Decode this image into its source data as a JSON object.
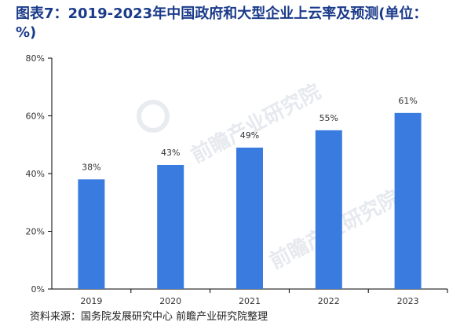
{
  "title": "图表7：2019-2023年中国政府和大型企业上云率及预测(单位：%)",
  "source": "资料来源：国务院发展研究中心 前瞻产业研究院整理",
  "watermark": "前瞻产业研究院",
  "colors": {
    "bar": "#3a7be0",
    "axis": "#000000",
    "title": "#1a3a8a"
  },
  "chart_data": {
    "type": "bar",
    "categories": [
      "2019",
      "2020",
      "2021",
      "2022",
      "2023"
    ],
    "values": [
      38,
      43,
      49,
      55,
      61
    ],
    "data_labels": [
      "38%",
      "43%",
      "49%",
      "55%",
      "61%"
    ],
    "yticks": [
      "0%",
      "20%",
      "40%",
      "60%",
      "80%"
    ],
    "ylim": [
      0,
      80
    ],
    "grid": false,
    "legend": "none"
  }
}
